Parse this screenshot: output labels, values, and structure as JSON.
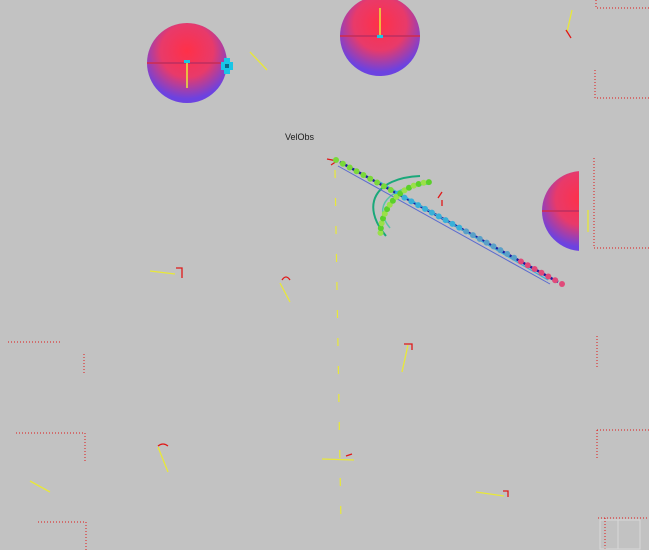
{
  "scene_label": "VelObs",
  "colors": {
    "background": "#c2c2c2",
    "obstacle_top": "#ff2d4a",
    "obstacle_bottom": "#6a3fe0",
    "robot_marker": "#19c6e6",
    "trajectory_main": "#1a1aa0",
    "wall_dots": "#e01818",
    "sensor_marks": "#e8e838",
    "ghost_arc": "#1aa87a"
  },
  "icons": [
    "robot-position-icon"
  ]
}
